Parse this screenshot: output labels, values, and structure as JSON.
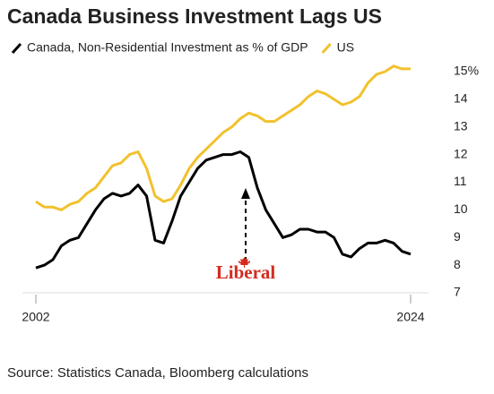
{
  "chart_data": {
    "type": "line",
    "title": "Canada Business Investment Lags US",
    "source": "Source: Statistics Canada, Bloomberg calculations",
    "annotation": "Liberal",
    "x": [
      2002,
      2002.5,
      2003,
      2003.5,
      2004,
      2004.5,
      2005,
      2005.5,
      2006,
      2006.5,
      2007,
      2007.5,
      2008,
      2008.5,
      2009,
      2009.5,
      2010,
      2010.5,
      2011,
      2011.5,
      2012,
      2012.5,
      2013,
      2013.5,
      2014,
      2014.5,
      2015,
      2015.5,
      2016,
      2016.5,
      2017,
      2017.5,
      2018,
      2018.5,
      2019,
      2019.5,
      2020,
      2020.5,
      2021,
      2021.5,
      2022,
      2022.5,
      2023,
      2023.5,
      2024
    ],
    "series": [
      {
        "name": "Canada, Non-Residential Investment as % of GDP",
        "color": "#000000",
        "values": [
          7.9,
          8.0,
          8.2,
          8.7,
          8.9,
          9.0,
          9.5,
          10.0,
          10.4,
          10.6,
          10.5,
          10.6,
          10.9,
          10.5,
          8.9,
          8.8,
          9.6,
          10.5,
          11.0,
          11.5,
          11.8,
          11.9,
          12.0,
          12.0,
          12.1,
          11.9,
          10.8,
          10.0,
          9.5,
          9.0,
          9.1,
          9.3,
          9.3,
          9.2,
          9.2,
          9.0,
          8.4,
          8.3,
          8.6,
          8.8,
          8.8,
          8.9,
          8.8,
          8.5,
          8.4
        ]
      },
      {
        "name": "US",
        "color": "#f2c12e",
        "values": [
          10.3,
          10.1,
          10.1,
          10.0,
          10.2,
          10.3,
          10.6,
          10.8,
          11.2,
          11.6,
          11.7,
          12.0,
          12.1,
          11.5,
          10.5,
          10.3,
          10.4,
          10.9,
          11.5,
          11.9,
          12.2,
          12.5,
          12.8,
          13.0,
          13.3,
          13.5,
          13.4,
          13.2,
          13.2,
          13.4,
          13.6,
          13.8,
          14.1,
          14.3,
          14.2,
          14.0,
          13.8,
          13.9,
          14.1,
          14.6,
          14.9,
          15.0,
          15.2,
          15.1,
          15.1
        ]
      }
    ],
    "xlim": [
      2002,
      2024
    ],
    "xticks": [
      2002,
      2024
    ],
    "ylim": [
      7,
      15
    ],
    "yticks": [
      7,
      8,
      9,
      10,
      11,
      12,
      13,
      14,
      {
        "value": 15,
        "label": "15%"
      }
    ],
    "grid": false
  }
}
